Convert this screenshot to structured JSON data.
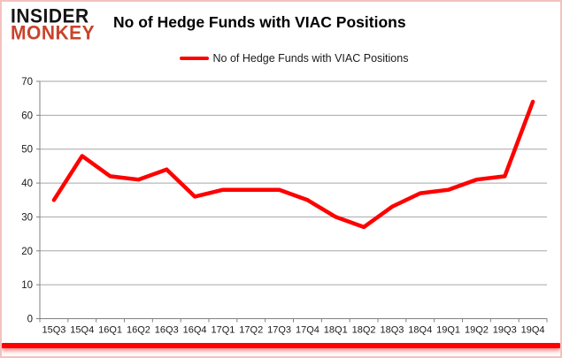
{
  "logo": {
    "line1": "INSIDER",
    "line2": "MONKEY"
  },
  "header": {
    "title": "No of Hedge Funds with VIAC Positions"
  },
  "legend": {
    "label": "No of Hedge Funds with VIAC Positions",
    "swatch_color": "#FF0000"
  },
  "chart_data": {
    "type": "line",
    "title": "No of Hedge Funds with VIAC Positions",
    "categories": [
      "15Q3",
      "15Q4",
      "16Q1",
      "16Q2",
      "16Q3",
      "16Q4",
      "17Q1",
      "17Q2",
      "17Q3",
      "17Q4",
      "18Q1",
      "18Q2",
      "18Q3",
      "18Q4",
      "19Q1",
      "19Q2",
      "19Q3",
      "19Q4"
    ],
    "series": [
      {
        "name": "No of Hedge Funds with VIAC Positions",
        "color": "#FF0000",
        "values": [
          35,
          48,
          42,
          41,
          44,
          36,
          38,
          38,
          38,
          35,
          30,
          27,
          33,
          37,
          38,
          41,
          42,
          64
        ]
      }
    ],
    "ylim": [
      0,
      70
    ],
    "yticks": [
      0,
      10,
      20,
      30,
      40,
      50,
      60,
      70
    ],
    "xlabel": "",
    "ylabel": "",
    "grid": true,
    "legend_position": "top"
  },
  "colors": {
    "line": "#FF0000",
    "logo_red": "#C8432B",
    "gridline": "#A6A6A6",
    "axis": "#808080",
    "tick_text": "#1A1A1A",
    "frame_border": "#F2C3BF",
    "bottom_bar": "#FF0000"
  }
}
